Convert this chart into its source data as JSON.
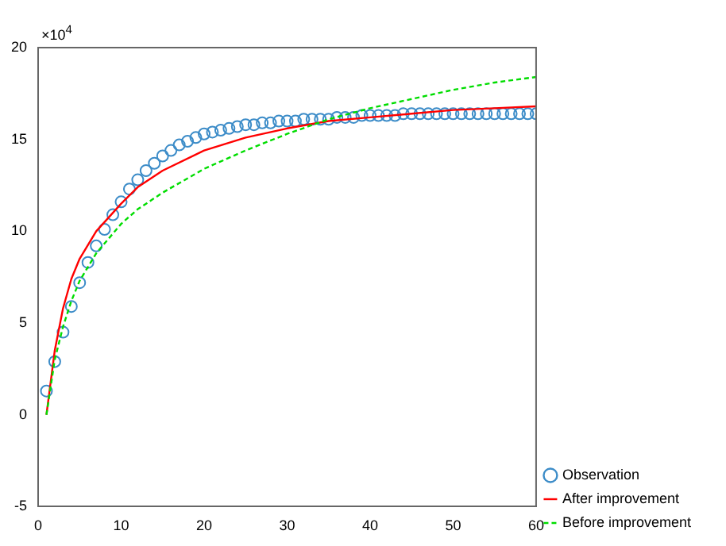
{
  "chart_data": {
    "type": "line",
    "annotations": [
      "×10$^{4}$"
    ],
    "xlim": [
      0,
      60
    ],
    "xticks": [
      0,
      10,
      20,
      30,
      40,
      50,
      60
    ],
    "ylim": [
      -5,
      20
    ],
    "yticks": [
      -5,
      0,
      5,
      10,
      15,
      20
    ],
    "grid": false,
    "legend": "bottom right",
    "series": [
      {
        "name": "Observation",
        "type": "scatter",
        "marker": "circle",
        "color": "#3c8cc8",
        "x": [
          1,
          2,
          3,
          4,
          5,
          6,
          7,
          8,
          9,
          10,
          11,
          12,
          13,
          14,
          15,
          16,
          17,
          18,
          19,
          20,
          21,
          22,
          23,
          24,
          25,
          26,
          27,
          28,
          29,
          30,
          31,
          32,
          33,
          34,
          35,
          36,
          37,
          38,
          39,
          40,
          41,
          42,
          43,
          44,
          45,
          46,
          47,
          48,
          49,
          50,
          51,
          52,
          53,
          54,
          55,
          56,
          57,
          58,
          59,
          60
        ],
        "values": [
          1.3,
          2.9,
          4.5,
          5.9,
          7.2,
          8.3,
          9.2,
          10.1,
          10.9,
          11.6,
          12.3,
          12.8,
          13.3,
          13.7,
          14.1,
          14.4,
          14.7,
          14.9,
          15.1,
          15.3,
          15.4,
          15.5,
          15.6,
          15.7,
          15.8,
          15.8,
          15.9,
          15.9,
          16,
          16,
          16,
          16.1,
          16.1,
          16.1,
          16.1,
          16.2,
          16.2,
          16.2,
          16.3,
          16.3,
          16.3,
          16.3,
          16.3,
          16.4,
          16.4,
          16.4,
          16.4,
          16.4,
          16.4,
          16.4,
          16.4,
          16.4,
          16.4,
          16.4,
          16.4,
          16.4,
          16.4,
          16.4,
          16.4,
          16.4
        ]
      },
      {
        "name": "After improvement",
        "marker": "none",
        "line_style": "solid",
        "color": "#ff0000",
        "x": [
          1,
          2,
          3,
          4,
          5,
          7,
          10,
          12,
          15,
          20,
          25,
          30,
          35,
          40,
          45,
          50,
          55,
          60
        ],
        "values": [
          0,
          3.5,
          5.8,
          7.4,
          8.5,
          10,
          11.5,
          12.4,
          13.3,
          14.4,
          15.1,
          15.6,
          16,
          16.2,
          16.4,
          16.6,
          16.7,
          16.8
        ]
      },
      {
        "name": "Before improvement",
        "marker": "none",
        "line_style": "dashed",
        "color": "#00dd00",
        "x": [
          1,
          2,
          3,
          4,
          5,
          7,
          10,
          12,
          15,
          20,
          25,
          30,
          35,
          40,
          45,
          50,
          55,
          60
        ],
        "values": [
          0,
          3,
          4.8,
          6.2,
          7.3,
          8.8,
          10.4,
          11.2,
          12.1,
          13.4,
          14.4,
          15.3,
          16.1,
          16.7,
          17.2,
          17.7,
          18.1,
          18.4
        ]
      }
    ]
  }
}
